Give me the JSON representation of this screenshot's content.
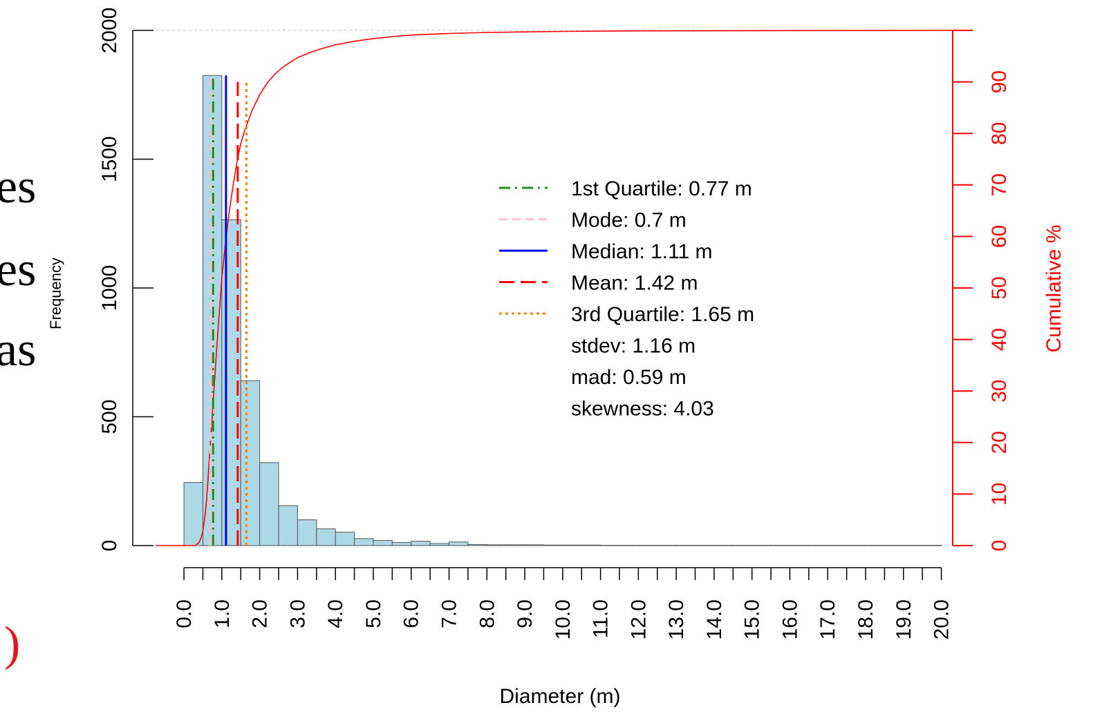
{
  "background_fragments": {
    "line1": "es",
    "line2": "es",
    "line3": "as",
    "line4": ")",
    "line4_color": "#e8141e"
  },
  "chart_data": {
    "type": "bar",
    "title": "",
    "xlabel": "Diameter (m)",
    "ylabel": "Frequency",
    "y2label": "Cumulative %",
    "xlim": [
      -0.75,
      20.3
    ],
    "ylim": [
      0,
      2000
    ],
    "y2lim": [
      0,
      100
    ],
    "bin_width": 0.5,
    "bins_start": [
      0.0,
      0.5,
      1.0,
      1.5,
      2.0,
      2.5,
      3.0,
      3.5,
      4.0,
      4.5,
      5.0,
      5.5,
      6.0,
      6.5,
      7.0,
      7.5,
      8.0,
      8.5,
      9.0,
      9.5,
      10.0,
      10.5,
      11.0,
      11.5,
      12.0,
      12.5,
      13.0,
      13.5,
      14.0,
      14.5,
      15.0,
      15.5,
      16.0,
      16.5,
      17.0,
      17.5,
      18.0,
      18.5,
      19.0,
      19.5
    ],
    "values": [
      245,
      1825,
      1265,
      640,
      322,
      155,
      100,
      65,
      52,
      27,
      20,
      12,
      17,
      8,
      14,
      4,
      3,
      3,
      3,
      2,
      2,
      2,
      1,
      1,
      1,
      1,
      1,
      1,
      1,
      1,
      1,
      1,
      1,
      1,
      1,
      1,
      1,
      1,
      1,
      1
    ],
    "yticks": [
      "0",
      "500",
      "1000",
      "1500",
      "2000"
    ],
    "ytick_values": [
      0,
      500,
      1000,
      1500,
      2000
    ],
    "y2ticks": [
      "0",
      "10",
      "20",
      "30",
      "40",
      "50",
      "60",
      "70",
      "80",
      "90"
    ],
    "y2tick_values": [
      0,
      10,
      20,
      30,
      40,
      50,
      60,
      70,
      80,
      90
    ],
    "y2axis_top": 100,
    "xticks": [
      "0.0",
      "1.0",
      "2.0",
      "3.0",
      "4.0",
      "5.0",
      "6.0",
      "7.0",
      "8.0",
      "9.0",
      "10.0",
      "11.0",
      "12.0",
      "13.0",
      "14.0",
      "15.0",
      "16.0",
      "17.0",
      "18.0",
      "19.0",
      "20.0"
    ],
    "xtick_values": [
      0,
      1,
      2,
      3,
      4,
      5,
      6,
      7,
      8,
      9,
      10,
      11,
      12,
      13,
      14,
      15,
      16,
      17,
      18,
      19,
      20
    ],
    "minor_xtick_values": [
      0,
      0.5,
      1,
      1.5,
      2,
      2.5,
      3,
      3.5,
      4,
      4.5,
      5,
      5.5,
      6,
      6.5,
      7,
      7.5,
      8,
      8.5,
      9,
      9.5,
      10,
      10.5,
      11,
      11.5,
      12,
      12.5,
      13,
      13.5,
      14,
      14.5,
      15,
      15.5,
      16,
      16.5,
      17,
      17.5,
      18,
      18.5,
      19,
      19.5,
      20
    ],
    "cumulative": {
      "name": "Cumulative %",
      "x": [
        -0.75,
        0.3,
        0.4,
        0.45,
        0.5,
        0.55,
        0.6,
        0.7,
        0.8,
        0.9,
        1.0,
        1.1,
        1.2,
        1.3,
        1.4,
        1.5,
        1.6,
        1.7,
        1.8,
        1.9,
        2.0,
        2.2,
        2.4,
        2.6,
        2.8,
        3.0,
        3.3,
        3.6,
        4.0,
        4.5,
        5.0,
        5.5,
        6.0,
        7.0,
        8.0,
        9.0,
        10.0,
        12.0,
        15.0,
        20.3
      ],
      "y": [
        0,
        0,
        0.6,
        1.5,
        2.8,
        5.5,
        9,
        20,
        31,
        42,
        52,
        59,
        65,
        70,
        74.5,
        78,
        80.5,
        82.5,
        84.5,
        86,
        87.5,
        89.8,
        91.5,
        92.8,
        93.8,
        94.7,
        95.6,
        96.4,
        97.2,
        97.9,
        98.4,
        98.8,
        99.1,
        99.4,
        99.6,
        99.7,
        99.8,
        99.9,
        99.95,
        100
      ]
    },
    "stats_lines": [
      {
        "name": "1st Quartile: 0.77 m",
        "value": 0.77,
        "color": "#228b22",
        "dash": "16,7,3,7",
        "top": 1825
      },
      {
        "name": "Mode: 0.7 m",
        "value": 0.7,
        "color": "#ffc0cb",
        "dash": "12,7",
        "top": 1825
      },
      {
        "name": "Median: 1.11 m",
        "value": 1.11,
        "color": "#0000ff",
        "dash": "",
        "top": 1825
      },
      {
        "name": "Mean: 1.42 m",
        "value": 1.42,
        "color": "#ff0000",
        "dash": "22,9",
        "top": 1800
      },
      {
        "name": "3rd Quartile: 1.65 m",
        "value": 1.65,
        "color": "#ff7f00",
        "dash": "4,5",
        "top": 1800
      }
    ],
    "legend_extra": [
      "stdev: 1.16 m",
      "mad: 0.59 m",
      "skewness: 4.03"
    ],
    "legend_position": "center-right",
    "colors": {
      "bar_fill": "#add8e6",
      "bar_stroke": "#555555",
      "cumulative": "#ff0000",
      "right_axis": "#ff0000",
      "ref_line": "#d3d3d3"
    },
    "grid": false
  }
}
